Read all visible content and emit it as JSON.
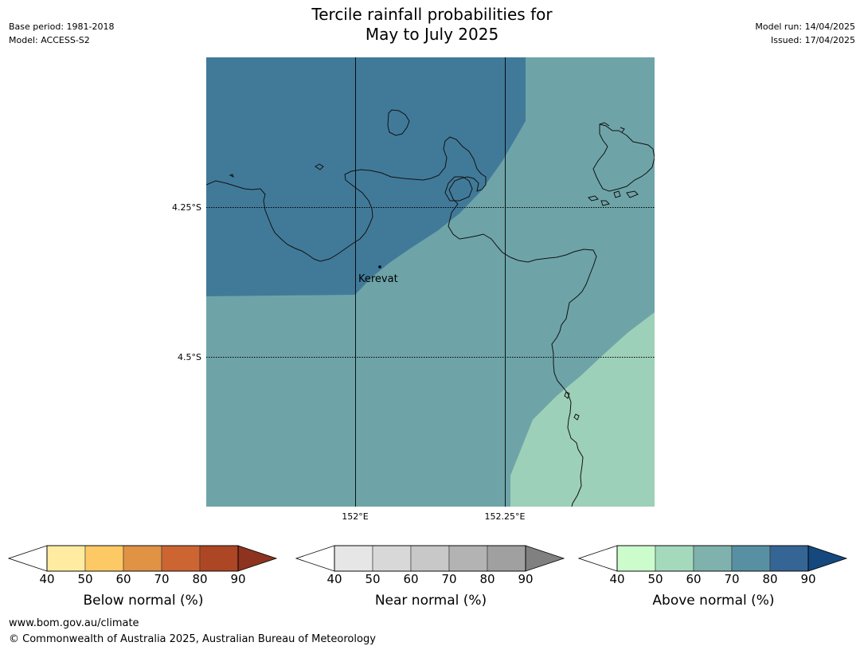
{
  "header": {
    "title_line1": "Tercile rainfall probabilities for",
    "title_line2": "May to July 2025",
    "base_period": "Base period: 1981-2018",
    "model": "Model: ACCESS-S2",
    "model_run": "Model run: 14/04/2025",
    "issued": "Issued: 17/04/2025"
  },
  "map": {
    "lat_labels": [
      "4.25°S",
      "4.5°S"
    ],
    "lon_labels": [
      "152°E",
      "152.25°E"
    ],
    "place_label": "Kerevat",
    "region_colors": {
      "above_70_80": "#417a99",
      "above_60_70": "#6ea4a8",
      "above_50_60": "#9dd0b8"
    },
    "coast_color": "#111111"
  },
  "colorbars": [
    {
      "label": "Below normal (%)",
      "ticks": [
        "40",
        "50",
        "60",
        "70",
        "80",
        "90"
      ],
      "colors": [
        "#ffffff",
        "#ffeca0",
        "#fdc965",
        "#e09245",
        "#cc6532",
        "#ad4624",
        "#8e331f"
      ]
    },
    {
      "label": "Near normal (%)",
      "ticks": [
        "40",
        "50",
        "60",
        "70",
        "80",
        "90"
      ],
      "colors": [
        "#ffffff",
        "#e6e6e6",
        "#d8d8d8",
        "#c8c8c8",
        "#b3b3b3",
        "#a0a0a0",
        "#808080"
      ]
    },
    {
      "label": "Above normal (%)",
      "ticks": [
        "40",
        "50",
        "60",
        "70",
        "80",
        "90"
      ],
      "colors": [
        "#ffffff",
        "#ccfccb",
        "#a4d9bc",
        "#80b2ad",
        "#5890a3",
        "#346594",
        "#15487d"
      ]
    }
  ],
  "footer": {
    "url": "www.bom.gov.au/climate",
    "copyright": "© Commonwealth of Australia 2025, Australian Bureau of Meteorology"
  }
}
